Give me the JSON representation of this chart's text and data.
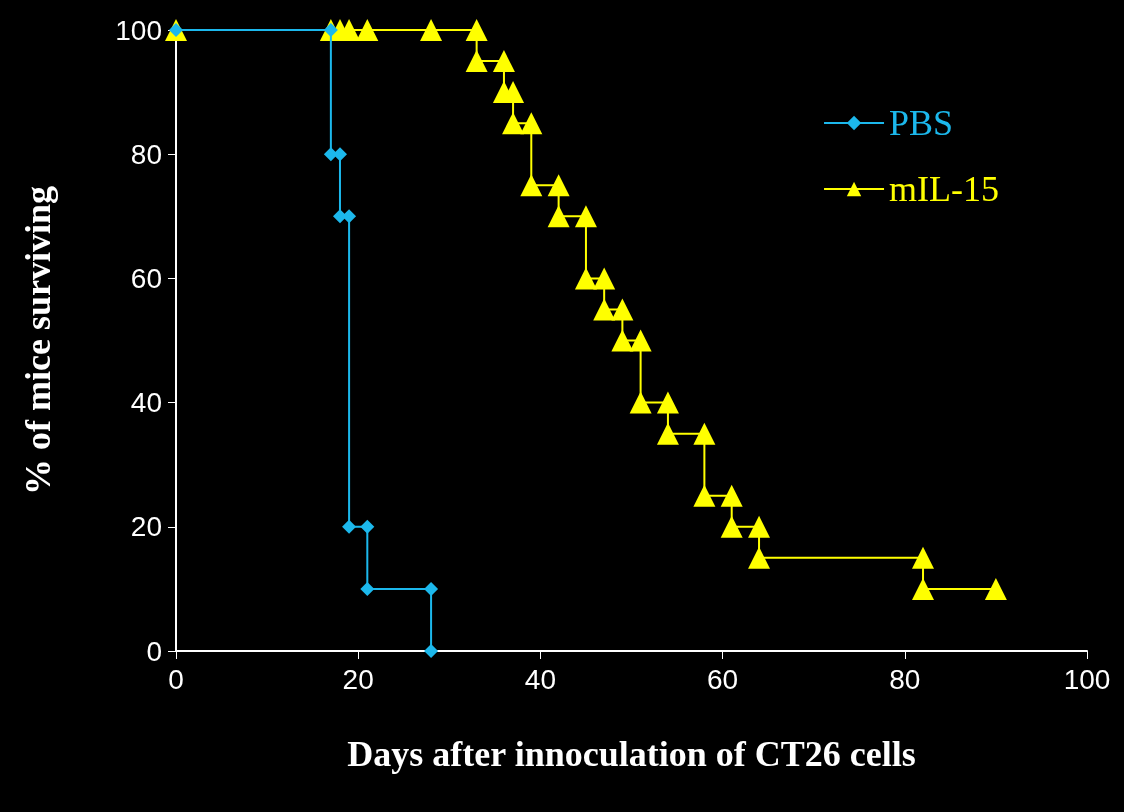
{
  "chart_data": {
    "type": "line",
    "xlabel": "Days after innoculation of CT26 cells",
    "ylabel": "% of mice surviving",
    "xlim": [
      0,
      100
    ],
    "xticks": [
      0,
      20,
      40,
      60,
      80,
      100
    ],
    "ylim": [
      0,
      100
    ],
    "yticks": [
      0,
      20,
      40,
      60,
      80,
      100
    ],
    "grid": false,
    "legend": "top right",
    "line_style": "solid",
    "series": [
      {
        "name": "PBS",
        "color": "#1cb8ec",
        "marker": "diamond",
        "x": [
          0,
          17,
          17,
          18,
          18,
          19,
          19,
          21,
          21,
          28,
          28
        ],
        "values": [
          100,
          100,
          80,
          80,
          70,
          70,
          20,
          20,
          10,
          10,
          0
        ]
      },
      {
        "name": "mIL-15",
        "color": "#ffff00",
        "marker": "triangle",
        "x": [
          0,
          17,
          18,
          19,
          21,
          28,
          33,
          33,
          36,
          36,
          37,
          37,
          39,
          39,
          42,
          42,
          45,
          45,
          47,
          47,
          49,
          49,
          51,
          51,
          54,
          54,
          58,
          58,
          61,
          61,
          64,
          64,
          82,
          82,
          90
        ],
        "values": [
          100,
          100,
          100,
          100,
          100,
          100,
          100,
          95,
          95,
          90,
          90,
          85,
          85,
          75,
          75,
          70,
          70,
          60,
          60,
          55,
          55,
          50,
          50,
          40,
          40,
          35,
          35,
          25,
          25,
          20,
          20,
          15,
          15,
          10,
          10
        ]
      }
    ]
  }
}
